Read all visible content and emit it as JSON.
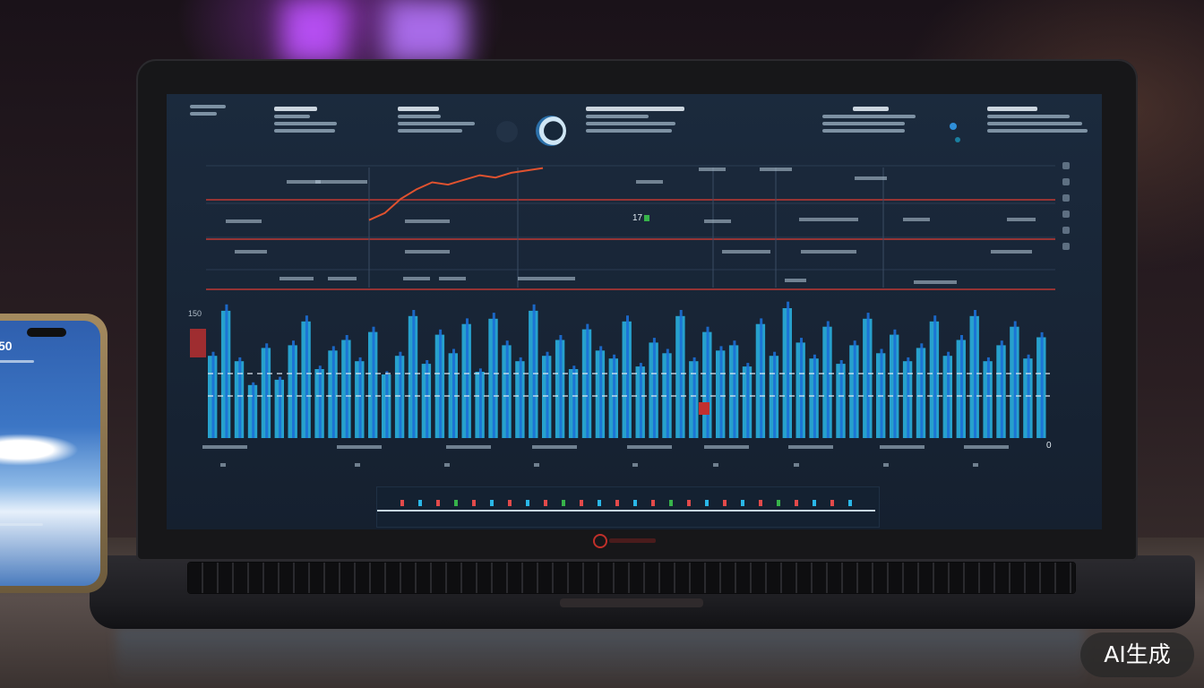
{
  "screen": {
    "badge_text": "17",
    "axis_zero_label": "0",
    "y_tick_label": "150",
    "colors": {
      "background": "#182536",
      "waveform": "#2ab7e8",
      "waveform_peak": "#1c6fd6",
      "line_series": "#e0522f",
      "threshold_line": "#d23a33",
      "text": "#c9d5e0"
    }
  },
  "phone": {
    "time_fragment": "50"
  },
  "watermark": {
    "label": "AI生成"
  },
  "chart_data": {
    "type": "area",
    "title": "",
    "xlabel": "",
    "ylabel": "",
    "series": [
      {
        "values": [
          62,
          96,
          58,
          40,
          68,
          44,
          70,
          88,
          52,
          66,
          74,
          58,
          80,
          48,
          62,
          92,
          56,
          78,
          64,
          86,
          50,
          90,
          70,
          58,
          96,
          62,
          74,
          52,
          82,
          66,
          60,
          88,
          54,
          72,
          64,
          92,
          58,
          80,
          66,
          70,
          54,
          86,
          62,
          98,
          72,
          60,
          84,
          56,
          70,
          90,
          64,
          78,
          58,
          68,
          88,
          62,
          74,
          92,
          58,
          70,
          84,
          60,
          76
        ]
      }
    ],
    "line_series": [
      {
        "values": [
          4,
          10,
          22,
          30,
          36,
          34,
          38,
          42,
          40,
          44,
          46,
          48
        ]
      }
    ],
    "grid": true,
    "legend": "none"
  }
}
